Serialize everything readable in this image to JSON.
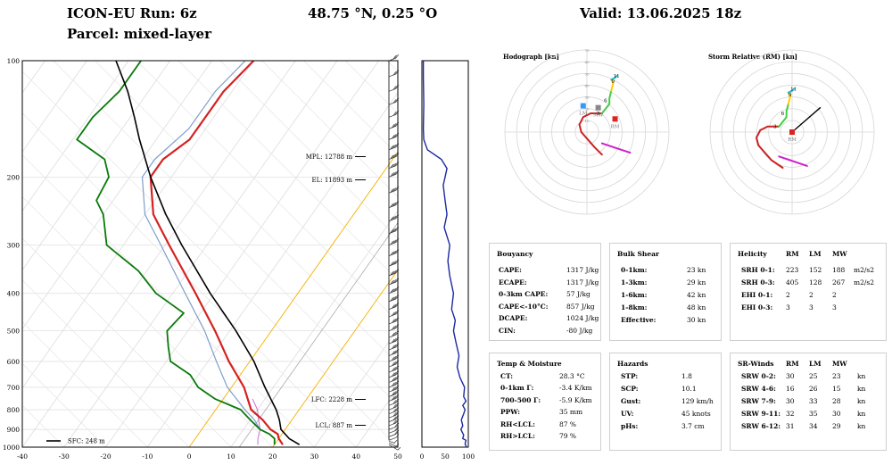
{
  "header": {
    "run": "ICON-EU Run: 6z",
    "parcel": "Parcel: mixed-layer",
    "location": "48.75 °N, 0.25 °O",
    "valid": "Valid: 13.06.2025 18z"
  },
  "skewt": {
    "pressure_labels": [
      "100",
      "200",
      "300",
      "400",
      "500",
      "600",
      "700",
      "800",
      "900",
      "1000"
    ],
    "temp_labels": [
      "-40",
      "-30",
      "-20",
      "-10",
      "0",
      "10",
      "20",
      "30",
      "40",
      "50"
    ],
    "markers": {
      "mpl": "MPL: 12788 m",
      "el": "EL: 11893 m",
      "lfc": "LFC: 2228 m",
      "lcl": "LCL: 887 m",
      "sfc": "SFC: 248 m"
    },
    "colors": {
      "temperature": "#d52121",
      "dewpoint": "#0a7a0a",
      "parcel": "#000000",
      "wetbulb": "#7f9fc9",
      "virtual": "#c870d8",
      "dry_adiabat": "#f5b400",
      "isotherm": "#d8d8d8"
    }
  },
  "humidity": {
    "x_labels": [
      "0",
      "50",
      "100"
    ],
    "color": "#1a2aa0"
  },
  "chart_data": [
    {
      "type": "line",
      "name": "skew-T log-p",
      "xlim": [
        -40,
        50
      ],
      "ylim": [
        1000,
        100
      ],
      "log_y": true,
      "series": [
        {
          "name": "temperature",
          "values": [
            [
              985,
              22
            ],
            [
              950,
              20
            ],
            [
              925,
              19
            ],
            [
              900,
              16.5
            ],
            [
              850,
              13
            ],
            [
              800,
              8.5
            ],
            [
              700,
              3
            ],
            [
              600,
              -5
            ],
            [
              500,
              -13.5
            ],
            [
              400,
              -24.5
            ],
            [
              300,
              -39
            ],
            [
              250,
              -48
            ],
            [
              200,
              -55
            ],
            [
              180,
              -55
            ],
            [
              160,
              -52
            ],
            [
              140,
              -52
            ],
            [
              120,
              -52
            ],
            [
              100,
              -50
            ]
          ]
        },
        {
          "name": "dewpoint",
          "values": [
            [
              985,
              20
            ],
            [
              950,
              19
            ],
            [
              925,
              17
            ],
            [
              900,
              14
            ],
            [
              850,
              10
            ],
            [
              800,
              6
            ],
            [
              750,
              -2
            ],
            [
              700,
              -8
            ],
            [
              650,
              -12
            ],
            [
              600,
              -19
            ],
            [
              550,
              -22
            ],
            [
              500,
              -25
            ],
            [
              450,
              -24
            ],
            [
              400,
              -34
            ],
            [
              350,
              -42
            ],
            [
              300,
              -54
            ],
            [
              250,
              -60
            ],
            [
              230,
              -64
            ],
            [
              200,
              -65
            ],
            [
              180,
              -69
            ],
            [
              160,
              -79
            ],
            [
              140,
              -79
            ],
            [
              120,
              -77
            ],
            [
              100,
              -77
            ]
          ]
        },
        {
          "name": "parcel",
          "values": [
            [
              985,
              26
            ],
            [
              950,
              22.5
            ],
            [
              900,
              19
            ],
            [
              850,
              17
            ],
            [
              800,
              14.5
            ],
            [
              700,
              8
            ],
            [
              600,
              1
            ],
            [
              500,
              -8.5
            ],
            [
              400,
              -21
            ],
            [
              300,
              -36
            ],
            [
              250,
              -45
            ],
            [
              200,
              -55
            ],
            [
              160,
              -64
            ],
            [
              140,
              -69
            ],
            [
              120,
              -75
            ],
            [
              100,
              -83
            ]
          ]
        },
        {
          "name": "wetbulb",
          "values": [
            [
              900,
              14
            ],
            [
              850,
              11
            ],
            [
              800,
              7
            ],
            [
              700,
              -1
            ],
            [
              600,
              -8
            ],
            [
              500,
              -16
            ],
            [
              400,
              -27
            ],
            [
              300,
              -41
            ],
            [
              250,
              -50
            ],
            [
              200,
              -57
            ],
            [
              180,
              -57
            ],
            [
              150,
              -54
            ],
            [
              120,
              -54
            ],
            [
              100,
              -52
            ]
          ]
        },
        {
          "name": "virtual",
          "values": [
            [
              985,
              16
            ],
            [
              950,
              15
            ],
            [
              900,
              14
            ],
            [
              850,
              12
            ],
            [
              800,
              10
            ],
            [
              750,
              7
            ]
          ]
        }
      ]
    },
    {
      "type": "line",
      "name": "relative humidity profile",
      "xlim": [
        0,
        100
      ],
      "ylim": [
        1000,
        100
      ],
      "series": [
        {
          "name": "RH",
          "values": [
            [
              1000,
              96
            ],
            [
              980,
              93
            ],
            [
              960,
              95
            ],
            [
              950,
              88
            ],
            [
              930,
              90
            ],
            [
              900,
              84
            ],
            [
              880,
              88
            ],
            [
              850,
              85
            ],
            [
              820,
              90
            ],
            [
              800,
              93
            ],
            [
              780,
              88
            ],
            [
              760,
              95
            ],
            [
              740,
              90
            ],
            [
              700,
              92
            ],
            [
              660,
              82
            ],
            [
              620,
              76
            ],
            [
              580,
              80
            ],
            [
              540,
              74
            ],
            [
              500,
              68
            ],
            [
              470,
              72
            ],
            [
              440,
              64
            ],
            [
              400,
              68
            ],
            [
              360,
              60
            ],
            [
              330,
              56
            ],
            [
              300,
              60
            ],
            [
              270,
              48
            ],
            [
              250,
              54
            ],
            [
              230,
              50
            ],
            [
              210,
              46
            ],
            [
              200,
              50
            ],
            [
              190,
              54
            ],
            [
              180,
              42
            ],
            [
              170,
              12
            ],
            [
              160,
              4
            ],
            [
              150,
              3
            ],
            [
              130,
              4
            ],
            [
              110,
              3
            ],
            [
              100,
              3
            ]
          ]
        }
      ]
    },
    {
      "type": "line",
      "name": "hodograph",
      "title": "Hodograph [kn]",
      "xlim": [
        -70,
        70
      ],
      "ylim": [
        -70,
        70
      ],
      "ring_labels": [
        "10",
        "20",
        "30",
        "40",
        "50",
        "60",
        "70"
      ],
      "series": [
        {
          "name": "0-3km",
          "color": "#cc2222",
          "values": [
            [
              8,
              -12
            ],
            [
              4,
              -8
            ],
            [
              -3,
              0
            ],
            [
              -4,
              4
            ],
            [
              -2,
              8
            ],
            [
              2,
              10
            ],
            [
              5,
              10
            ],
            [
              8,
              10
            ]
          ]
        },
        {
          "name": "3-6km",
          "color": "#44cc44",
          "values": [
            [
              8,
              10
            ],
            [
              12,
              15
            ],
            [
              12,
              18
            ],
            [
              13,
              22
            ]
          ]
        },
        {
          "name": "6-9km",
          "color": "#ffcc00",
          "values": [
            [
              13,
              22
            ],
            [
              14,
              26
            ],
            [
              13,
              28
            ]
          ]
        },
        {
          "name": "9-11km",
          "color": "#22bbcc",
          "values": [
            [
              13,
              28
            ],
            [
              15,
              29
            ],
            [
              16,
              30
            ]
          ]
        },
        {
          "name": "SFC-1km",
          "color": "#cc22cc",
          "values": [
            [
              23,
              -11
            ],
            [
              14,
              -8
            ],
            [
              8,
              -6
            ]
          ]
        }
      ],
      "labels": [
        [
          "3",
          7,
          10
        ],
        [
          "6",
          11,
          17
        ],
        [
          "9",
          15,
          27
        ],
        [
          "11",
          16,
          30
        ]
      ],
      "markers": [
        {
          "name": "RM",
          "color": "#dd2222",
          "u": 15,
          "v": 7
        },
        {
          "name": "LM",
          "color": "#3399ff",
          "u": -2,
          "v": 14
        },
        {
          "name": "MW",
          "color": "#888888",
          "u": 6,
          "v": 13
        }
      ]
    },
    {
      "type": "line",
      "name": "storm relative hodograph",
      "title": "Storm Relative (RM) [kn]",
      "xlim": [
        -70,
        70
      ],
      "ylim": [
        -70,
        70
      ],
      "series": [
        {
          "name": "0-3km",
          "color": "#cc2222",
          "values": [
            [
              -5,
              -19
            ],
            [
              -11,
              -15
            ],
            [
              -18,
              -7
            ],
            [
              -19,
              -3
            ],
            [
              -17,
              1
            ],
            [
              -13,
              3
            ],
            [
              -10,
              3
            ],
            [
              -7,
              3
            ]
          ]
        },
        {
          "name": "3-6km",
          "color": "#44cc44",
          "values": [
            [
              -7,
              3
            ],
            [
              -3,
              8
            ],
            [
              -3,
              11
            ],
            [
              -2,
              15
            ]
          ]
        },
        {
          "name": "6-9km",
          "color": "#ffcc00",
          "values": [
            [
              -2,
              15
            ],
            [
              -1,
              19
            ],
            [
              -2,
              21
            ]
          ]
        },
        {
          "name": "9-11km",
          "color": "#22bbcc",
          "values": [
            [
              -2,
              21
            ],
            [
              0,
              22
            ],
            [
              1,
              23
            ]
          ]
        },
        {
          "name": "SFC-1km",
          "color": "#cc22cc",
          "values": [
            [
              8,
              -18
            ],
            [
              -1,
              -15
            ],
            [
              -7,
              -13
            ]
          ]
        },
        {
          "name": "motion",
          "color": "#000000",
          "values": [
            [
              0,
              0
            ],
            [
              15,
              13
            ]
          ]
        }
      ],
      "labels": [
        [
          "3",
          -8,
          3
        ],
        [
          "6",
          -4,
          10
        ],
        [
          "9",
          0,
          20
        ],
        [
          "11",
          1,
          23
        ]
      ],
      "markers": [
        {
          "name": "RM",
          "color": "#dd2222",
          "u": 0,
          "v": 0
        }
      ]
    }
  ],
  "winds": {
    "levels_hpa": [
      960,
      940,
      920,
      900,
      880,
      860,
      840,
      820,
      800,
      780,
      760,
      740,
      720,
      700,
      680,
      660,
      640,
      620,
      600,
      580,
      560,
      540,
      520,
      500,
      480,
      460,
      440,
      420,
      400,
      380,
      360,
      340,
      320,
      300,
      280,
      260,
      240,
      220,
      200,
      190,
      180,
      170,
      160,
      150,
      140,
      130,
      120,
      110,
      100
    ],
    "speed_kn": [
      12,
      15,
      18,
      22,
      25,
      28,
      30,
      32,
      33,
      34,
      35,
      35,
      36,
      36,
      37,
      37,
      38,
      38,
      38,
      39,
      39,
      40,
      40,
      41,
      42,
      43,
      44,
      45,
      46,
      48,
      50,
      52,
      55,
      58,
      60,
      62,
      63,
      62,
      58,
      55,
      50,
      46,
      40,
      36,
      32,
      30,
      28,
      26,
      25
    ]
  },
  "tables": {
    "buoyancy": {
      "title": "Bouyancy",
      "rows": [
        [
          "CAPE:",
          "1317 J/kg"
        ],
        [
          "ECAPE:",
          "1317 J/kg"
        ],
        [
          "0-3km CAPE:",
          "57 J/kg"
        ],
        [
          "CAPE<-10°C:",
          "857 J/kg"
        ],
        [
          "DCAPE:",
          "1024 J/kg"
        ],
        [
          "CIN:",
          "-80 J/kg"
        ]
      ]
    },
    "bulk_shear": {
      "title": "Bulk Shear",
      "rows": [
        [
          "0-1km:",
          "23 kn"
        ],
        [
          "1-3km:",
          "29 kn"
        ],
        [
          "1-6km:",
          "42 kn"
        ],
        [
          "1-8km:",
          "48 kn"
        ],
        [
          "Effective:",
          "30 kn"
        ]
      ]
    },
    "helicity": {
      "title": "Helicity",
      "headers": [
        "RM",
        "LM",
        "MW"
      ],
      "rows": [
        [
          "SRH 0-1:",
          "223",
          "152",
          "188",
          "m2/s2"
        ],
        [
          "SRH 0-3:",
          "405",
          "128",
          "267",
          "m2/s2"
        ],
        [
          "EHI 0-1:",
          "2",
          "2",
          "2",
          ""
        ],
        [
          "EHI 0-3:",
          "3",
          "3",
          "3",
          ""
        ]
      ]
    },
    "temp_moisture": {
      "title": "Temp & Moisture",
      "rows": [
        [
          "CT:",
          "28.3 °C"
        ],
        [
          "0-1km Γ:",
          "-3.4 K/km"
        ],
        [
          "700-500 Γ:",
          "-5.9 K/km"
        ],
        [
          "PPW:",
          "35 mm"
        ],
        [
          "RH<LCL:",
          "87 %"
        ],
        [
          "RH>LCL:",
          "79 %"
        ]
      ]
    },
    "hazards": {
      "title": "Hazards",
      "rows": [
        [
          "STP:",
          "1.8"
        ],
        [
          "SCP:",
          "10.1"
        ],
        [
          "Gust:",
          "129 km/h"
        ],
        [
          "UV:",
          "45 knots"
        ],
        [
          "pHs:",
          "3.7 cm"
        ]
      ]
    },
    "sr_winds": {
      "title": "SR-Winds",
      "headers": [
        "RM",
        "LM",
        "MW"
      ],
      "rows": [
        [
          "SRW 0-2:",
          "30",
          "25",
          "23",
          "kn"
        ],
        [
          "SRW 4-6:",
          "16",
          "26",
          "15",
          "kn"
        ],
        [
          "SRW 7-9:",
          "30",
          "33",
          "28",
          "kn"
        ],
        [
          "SRW 9-11:",
          "32",
          "35",
          "30",
          "kn"
        ],
        [
          "SRW 6-12:",
          "31",
          "34",
          "29",
          "kn"
        ]
      ]
    }
  }
}
